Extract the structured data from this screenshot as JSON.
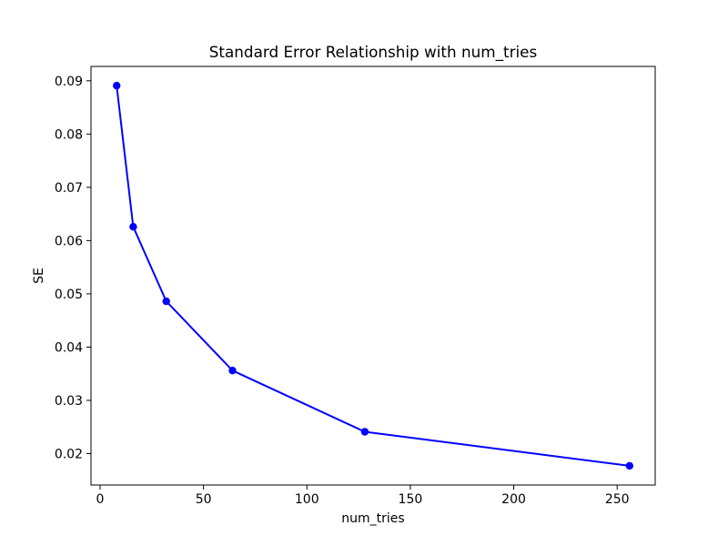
{
  "chart_data": {
    "type": "line",
    "title": "Standard Error Relationship with num_tries",
    "xlabel": "num_tries",
    "ylabel": "SE",
    "x": [
      8,
      16,
      32,
      64,
      128,
      256
    ],
    "y": [
      0.0891,
      0.0626,
      0.0486,
      0.0356,
      0.0241,
      0.0177
    ],
    "xlim": [
      -4.4,
      268.4
    ],
    "ylim": [
      0.0141,
      0.0927
    ],
    "xticks": [
      0,
      50,
      100,
      150,
      200,
      250
    ],
    "xtick_labels": [
      "0",
      "50",
      "100",
      "150",
      "200",
      "250"
    ],
    "yticks": [
      0.02,
      0.03,
      0.04,
      0.05,
      0.06,
      0.07,
      0.08,
      0.09
    ],
    "ytick_labels": [
      "0.02",
      "0.03",
      "0.04",
      "0.05",
      "0.06",
      "0.07",
      "0.08",
      "0.09"
    ],
    "grid": false,
    "legend": null,
    "line_color": "#0000ff",
    "marker": "circle",
    "marker_color": "#0000ff",
    "axes_color": "#000000",
    "background_color": "#ffffff"
  }
}
